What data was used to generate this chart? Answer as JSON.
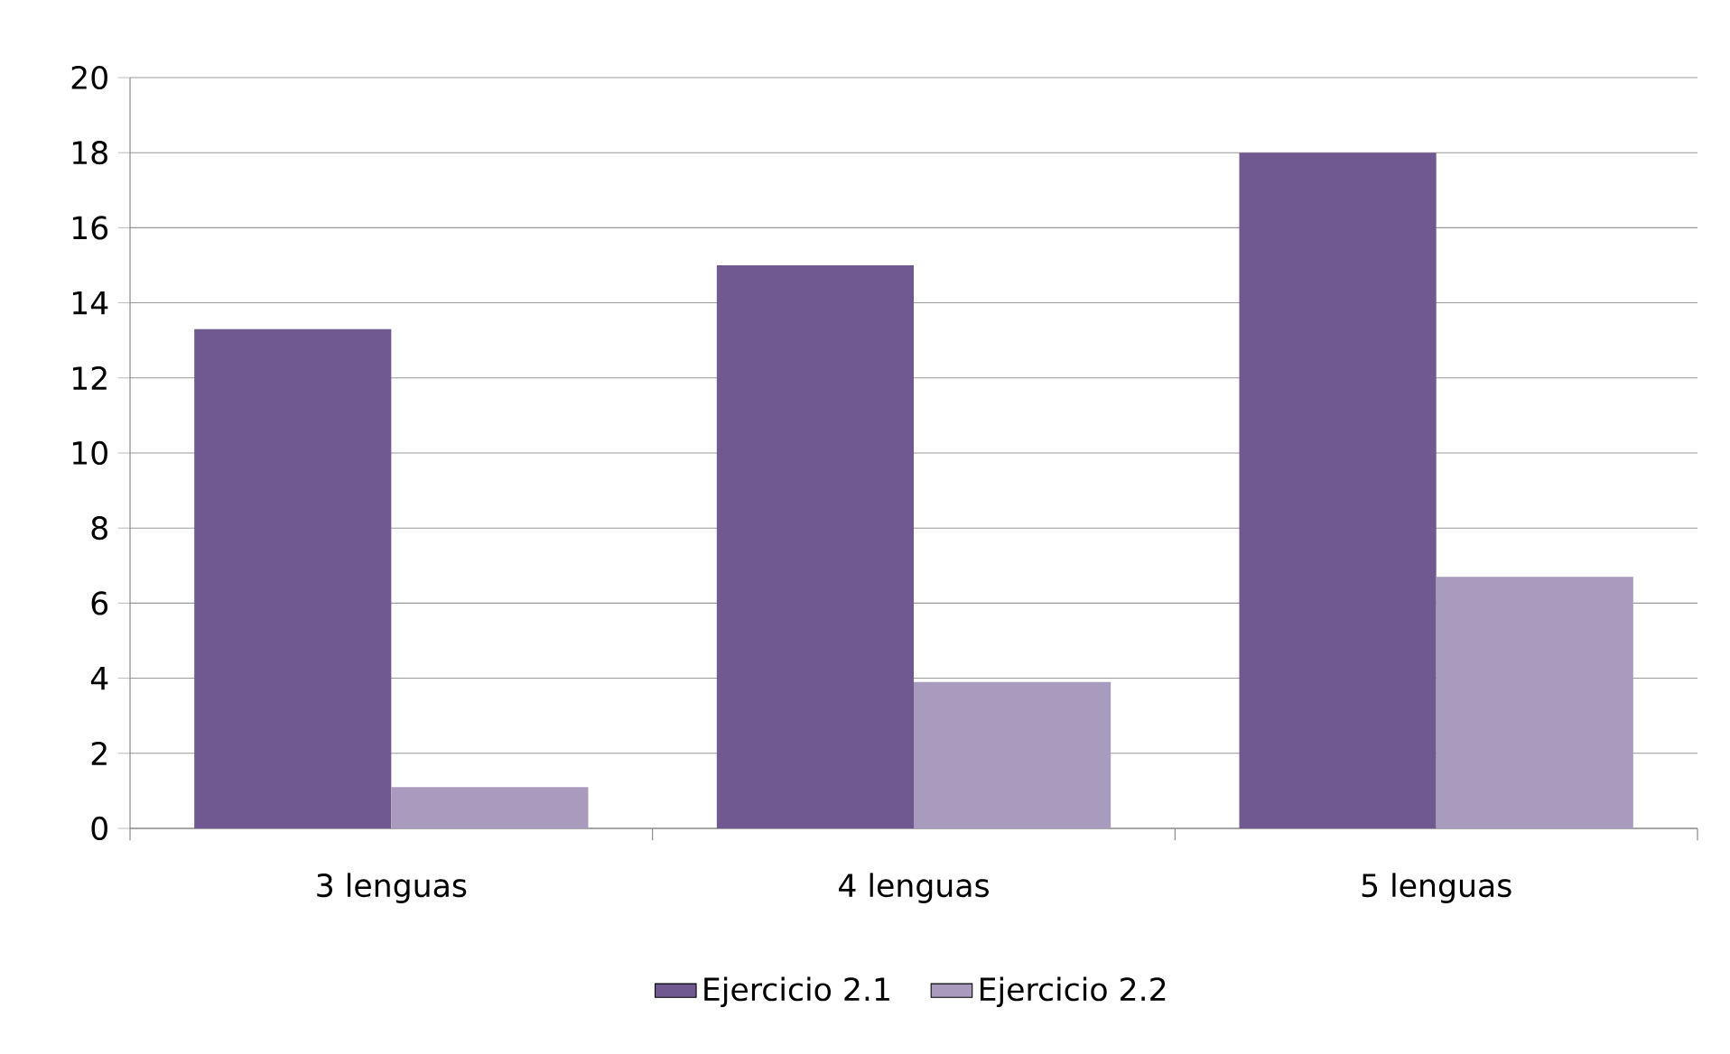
{
  "chart_data": {
    "type": "bar",
    "categories": [
      "3 lenguas",
      "4 lenguas",
      "5 lenguas"
    ],
    "series": [
      {
        "name": "Ejercicio 2.1",
        "color": "#705890",
        "values": [
          13.3,
          15,
          18
        ]
      },
      {
        "name": "Ejercicio 2.2",
        "color": "#a99bbd",
        "values": [
          1.1,
          3.9,
          6.7
        ]
      }
    ],
    "ylim": [
      0,
      20
    ],
    "yticks": [
      0,
      2,
      4,
      6,
      8,
      10,
      12,
      14,
      16,
      18,
      20
    ],
    "grid": "y",
    "legend": "bottom"
  }
}
